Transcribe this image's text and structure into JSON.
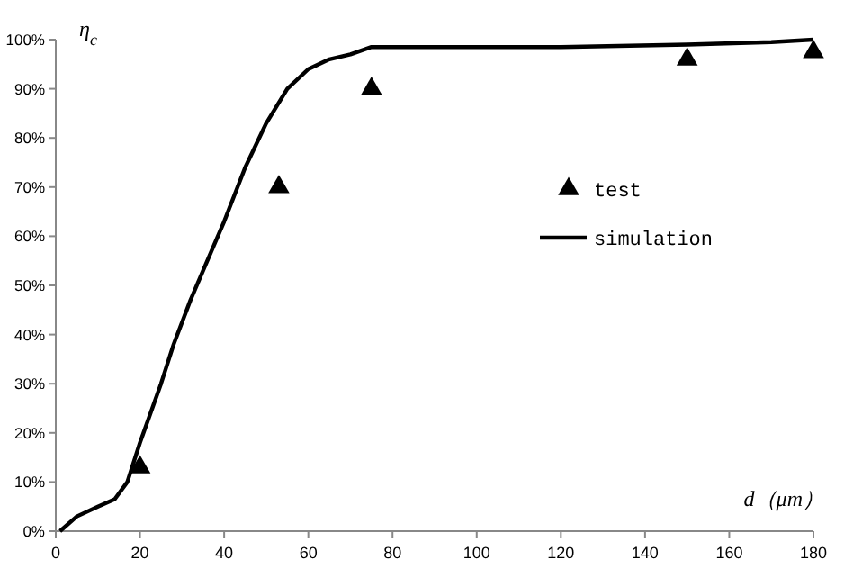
{
  "chart_data": {
    "type": "line",
    "xlabel": "d（μm）",
    "ylabel": "η$_{c}$",
    "xlim": [
      0,
      180
    ],
    "xticks": [
      0,
      20,
      40,
      60,
      80,
      100,
      120,
      140,
      160,
      180
    ],
    "ylim": [
      0,
      100
    ],
    "yticks": [
      {
        "value": 0,
        "label": "0%"
      },
      {
        "value": 10,
        "label": "10%"
      },
      {
        "value": 20,
        "label": "20%"
      },
      {
        "value": 30,
        "label": "30%"
      },
      {
        "value": 40,
        "label": "40%"
      },
      {
        "value": 50,
        "label": "50%"
      },
      {
        "value": 60,
        "label": "60%"
      },
      {
        "value": 70,
        "label": "70%"
      },
      {
        "value": 80,
        "label": "80%"
      },
      {
        "value": 90,
        "label": "90%"
      },
      {
        "value": 100,
        "label": "100%"
      }
    ],
    "grid": false,
    "legend": "right",
    "series": [
      {
        "name": "test",
        "type": "scatter",
        "marker": "triangle",
        "color": "#000000",
        "x": [
          20,
          53,
          75,
          150,
          180
        ],
        "values": [
          13,
          70,
          90,
          96,
          97.5
        ]
      },
      {
        "name": "simulation",
        "marker": "none",
        "line_style": "solid",
        "color": "#000000",
        "x": [
          1,
          5,
          10,
          14,
          17,
          20,
          25,
          28,
          32,
          36,
          40,
          45,
          50,
          55,
          60,
          65,
          70,
          75,
          100,
          120,
          150,
          170,
          180
        ],
        "values": [
          0,
          3,
          5,
          6.5,
          10,
          18,
          30,
          38,
          47,
          55,
          63,
          74,
          83,
          90,
          94,
          96,
          97,
          98.5,
          98.5,
          98.5,
          99,
          99.5,
          100
        ]
      }
    ]
  }
}
